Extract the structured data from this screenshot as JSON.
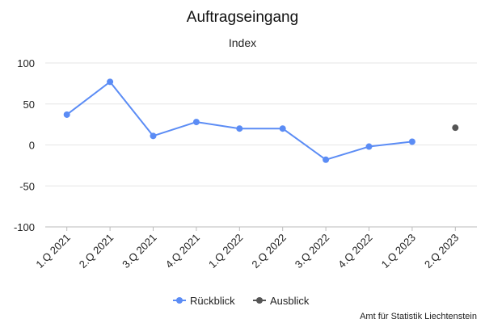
{
  "chart_data": {
    "type": "line",
    "title": "Auftragseingang",
    "subtitle": "Index",
    "xlabel": "",
    "ylabel": "",
    "categories": [
      "1.Q 2021",
      "2.Q 2021",
      "3.Q 2021",
      "4.Q 2021",
      "1.Q 2022",
      "2.Q 2022",
      "3.Q 2022",
      "4.Q 2022",
      "1.Q 2023",
      "2.Q 2023"
    ],
    "ylim": [
      -100,
      100
    ],
    "yticks": [
      "100",
      "50",
      "0",
      "-50",
      "-100"
    ],
    "grid": true,
    "legend_position": "bottom",
    "series": [
      {
        "name": "Rückblick",
        "color": "#5b8cf5",
        "values": [
          37,
          77,
          11,
          28,
          20,
          20,
          -18,
          -2,
          4,
          null
        ]
      },
      {
        "name": "Ausblick",
        "color": "#555555",
        "values": [
          null,
          null,
          null,
          null,
          null,
          null,
          null,
          null,
          null,
          21
        ]
      }
    ],
    "source": "Amt für Statistik Liechtenstein"
  }
}
